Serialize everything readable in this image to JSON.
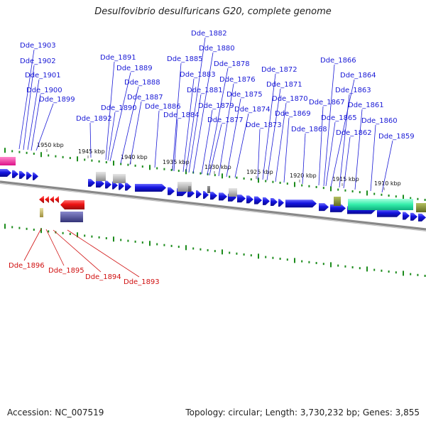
{
  "title": "Desulfovibrio desulfuricans G20, complete genome",
  "footer": {
    "accession": "Accession: NC_007519",
    "topology": "Topology: circular; Length: 3,730,232 bp; Genes: 3,855"
  },
  "colors": {
    "forward_gene": "#1414e0",
    "reverse_gene": "#ee1111",
    "forward_label": "#1a1ad6",
    "reverse_label": "#d01010",
    "tick": "#1c8c1c",
    "backbone": "#777777"
  },
  "kbp_labels": [
    "1950 kbp",
    "1945 kbp",
    "1940 kbp",
    "1935 kbp",
    "1930 kbp",
    "1925 kbp",
    "1920 kbp",
    "1915 kbp",
    "1910 kbp"
  ],
  "forward_genes": [
    "Dde_1903",
    "Dde_1902",
    "Dde_1901",
    "Dde_1900",
    "Dde_1899",
    "Dde_1892",
    "Dde_1891",
    "Dde_1890",
    "Dde_1889",
    "Dde_1888",
    "Dde_1887",
    "Dde_1886",
    "Dde_1885",
    "Dde_1884",
    "Dde_1883",
    "Dde_1882",
    "Dde_1881",
    "Dde_1880",
    "Dde_1879",
    "Dde_1878",
    "Dde_1877",
    "Dde_1876",
    "Dde_1875",
    "Dde_1874",
    "Dde_1873",
    "Dde_1872",
    "Dde_1871",
    "Dde_1870",
    "Dde_1869",
    "Dde_1868",
    "Dde_1867",
    "Dde_1866",
    "Dde_1865",
    "Dde_1864",
    "Dde_1863",
    "Dde_1862",
    "Dde_1861",
    "Dde_1860",
    "Dde_1859"
  ],
  "reverse_genes": [
    "Dde_1896",
    "Dde_1895",
    "Dde_1894",
    "Dde_1893"
  ]
}
